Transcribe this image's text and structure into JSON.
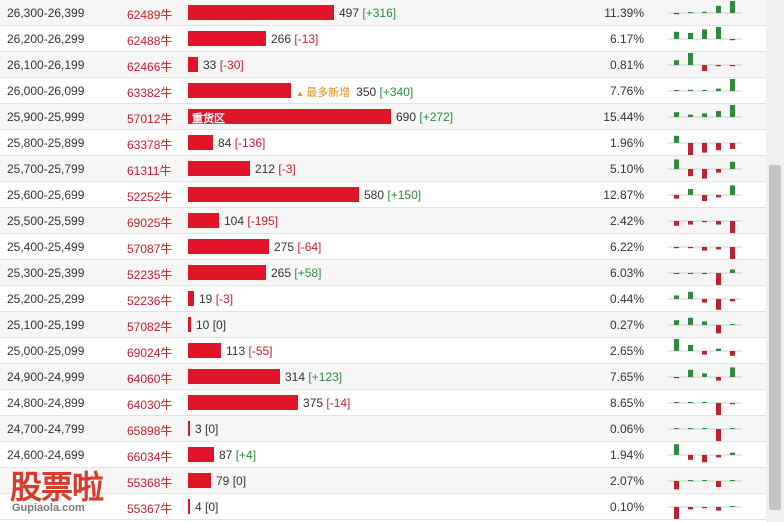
{
  "rows": [
    {
      "range": "26,300-26,399",
      "code": "62489牛",
      "value": 497,
      "tag": "",
      "badge": "",
      "change": "[+316]",
      "pct": "11.39%",
      "spark": [
        -0.1,
        0.05,
        0.1,
        0.6,
        1
      ]
    },
    {
      "range": "26,200-26,299",
      "code": "62488牛",
      "value": 266,
      "tag": "",
      "badge": "",
      "change": "[-13]",
      "pct": "6.17%",
      "spark": [
        0.6,
        0.5,
        0.8,
        1,
        -0.1
      ]
    },
    {
      "range": "26,100-26,199",
      "code": "62466牛",
      "value": 33,
      "tag": "",
      "badge": "",
      "change": "[-30]",
      "pct": "0.81%",
      "spark": [
        0.4,
        1,
        -0.5,
        -0.1,
        -0.1
      ]
    },
    {
      "range": "26,000-26,099",
      "code": "63382牛",
      "value": 350,
      "tag": "",
      "badge": "最多新增",
      "change": "[+340]",
      "pct": "7.76%",
      "spark": [
        0.05,
        0.1,
        0.05,
        0.2,
        1
      ]
    },
    {
      "range": "25,900-25,999",
      "code": "57012牛",
      "value": 690,
      "tag": "重货区",
      "badge": "",
      "change": "[+272]",
      "pct": "15.44%",
      "spark": [
        0.4,
        0.2,
        0.3,
        0.5,
        1
      ]
    },
    {
      "range": "25,800-25,899",
      "code": "63378牛",
      "value": 84,
      "tag": "",
      "badge": "",
      "change": "[-136]",
      "pct": "1.96%",
      "spark": [
        0.6,
        -1,
        -0.8,
        -0.6,
        -0.5
      ]
    },
    {
      "range": "25,700-25,799",
      "code": "61311牛",
      "value": 212,
      "tag": "",
      "badge": "",
      "change": "[-3]",
      "pct": "5.10%",
      "spark": [
        0.8,
        -0.6,
        -0.8,
        -0.3,
        0.6
      ]
    },
    {
      "range": "25,600-25,699",
      "code": "52252牛",
      "value": 580,
      "tag": "",
      "badge": "",
      "change": "[+150]",
      "pct": "12.87%",
      "spark": [
        -0.3,
        0.5,
        -0.5,
        -0.2,
        0.8
      ]
    },
    {
      "range": "25,500-25,599",
      "code": "69025牛",
      "value": 104,
      "tag": "",
      "badge": "",
      "change": "[-195]",
      "pct": "2.42%",
      "spark": [
        -0.4,
        -0.3,
        -0.1,
        -0.3,
        -1
      ]
    },
    {
      "range": "25,400-25,499",
      "code": "57087牛",
      "value": 275,
      "tag": "",
      "badge": "",
      "change": "[-64]",
      "pct": "6.22%",
      "spark": [
        -0.1,
        -0.1,
        -0.3,
        -0.2,
        -1
      ]
    },
    {
      "range": "25,300-25,399",
      "code": "52235牛",
      "value": 265,
      "tag": "",
      "badge": "",
      "change": "[+58]",
      "pct": "6.03%",
      "spark": [
        -0.05,
        -0.05,
        -0.05,
        -1,
        0.3
      ]
    },
    {
      "range": "25,200-25,299",
      "code": "52236牛",
      "value": 19,
      "tag": "",
      "badge": "",
      "change": "[-3]",
      "pct": "0.44%",
      "spark": [
        0.3,
        0.6,
        -0.3,
        -0.9,
        -0.2
      ]
    },
    {
      "range": "25,100-25,199",
      "code": "57082牛",
      "value": 10,
      "tag": "",
      "badge": "",
      "change": "[0]",
      "pct": "0.27%",
      "spark": [
        0.4,
        0.6,
        0.3,
        -0.7,
        0
      ]
    },
    {
      "range": "25,000-25,099",
      "code": "69024牛",
      "value": 113,
      "tag": "",
      "badge": "",
      "change": "[-55]",
      "pct": "2.65%",
      "spark": [
        1,
        0.5,
        -0.3,
        0.2,
        -0.4
      ]
    },
    {
      "range": "24,900-24,999",
      "code": "64060牛",
      "value": 314,
      "tag": "",
      "badge": "",
      "change": "[+123]",
      "pct": "7.65%",
      "spark": [
        -0.1,
        0.6,
        0.3,
        -0.3,
        0.8
      ]
    },
    {
      "range": "24,800-24,899",
      "code": "64030牛",
      "value": 375,
      "tag": "",
      "badge": "",
      "change": "[-14]",
      "pct": "8.65%",
      "spark": [
        0,
        0,
        0,
        -1,
        -0.1
      ]
    },
    {
      "range": "24,700-24,799",
      "code": "65898牛",
      "value": 3,
      "tag": "",
      "badge": "",
      "change": "[0]",
      "pct": "0.06%",
      "spark": [
        0,
        0,
        0,
        -1,
        0
      ]
    },
    {
      "range": "24,600-24,699",
      "code": "66034牛",
      "value": 87,
      "tag": "",
      "badge": "",
      "change": "[+4]",
      "pct": "1.94%",
      "spark": [
        0.9,
        -0.4,
        -0.6,
        -0.2,
        0.2
      ]
    },
    {
      "range": "",
      "code": "55368牛",
      "value": 79,
      "tag": "",
      "badge": "",
      "change": "[0]",
      "pct": "2.07%",
      "spark": [
        -0.7,
        0,
        0,
        -0.5,
        0
      ]
    },
    {
      "range": "",
      "code": "55367牛",
      "value": 4,
      "tag": "",
      "badge": "",
      "change": "[0]",
      "pct": "0.10%",
      "spark": [
        -1,
        -0.2,
        -0.1,
        -0.3,
        0
      ]
    }
  ],
  "watermark": {
    "title": "股票啦",
    "url": "Gupiaola.com"
  },
  "colors": {
    "bar": "#e0152a",
    "positive": "#2e8b3e",
    "negative": "#c0212f",
    "code": "#c0212f"
  }
}
